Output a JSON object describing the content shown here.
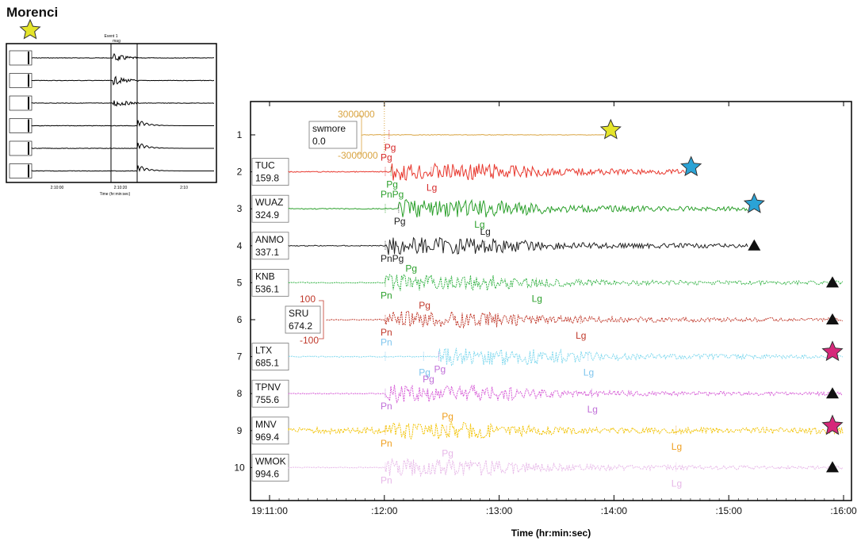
{
  "title": "Morenci",
  "thumbnail": {
    "header": [
      "Event 1",
      "mag"
    ],
    "xticks": [
      "2:10:00",
      "2:10:20",
      "2:10"
    ],
    "xlabel": "Time (hr:min:sec)",
    "rows": 6
  },
  "chart_data": {
    "type": "line",
    "xlabel": "Time (hr:min:sec)",
    "xticks": [
      "19:11:00",
      ":12:00",
      ":13:00",
      ":14:00",
      ":15:00",
      ":16:00"
    ],
    "xlim": [
      "19:11:00",
      "19:16:00"
    ],
    "traces": [
      {
        "index": "1",
        "station": "swmore",
        "distance": "0.0",
        "color": "#d9a441",
        "scale_top": "3000000",
        "scale_bottom": "-3000000",
        "end": "19:13:55",
        "marker": "star",
        "marker_color": "#e4e42a",
        "picks": [
          {
            "label": "Pg",
            "time": "19:12:00",
            "color": "#d62728"
          }
        ]
      },
      {
        "index": "2",
        "station": "TUC",
        "distance": "159.8",
        "color": "#e8382e",
        "end": "19:14:37",
        "marker": "star",
        "marker_color": "#2aa3d6",
        "picks": [
          {
            "label": "Pg",
            "time": "19:12:01",
            "color": "#2ca02c"
          },
          {
            "label": "Pg",
            "time": "19:11:58",
            "color": "#d62728"
          },
          {
            "label": "Lg",
            "time": "19:12:22",
            "color": "#d62728"
          }
        ]
      },
      {
        "index": "3",
        "station": "WUAZ",
        "distance": "324.9",
        "color": "#2ca02c",
        "end": "19:15:10",
        "marker": "star",
        "marker_color": "#2aa3d6",
        "picks": [
          {
            "label": "Pg",
            "time": "19:12:05",
            "color": "#222222"
          },
          {
            "label": "PnPg",
            "time": "19:11:58",
            "color": "#2ca02c"
          },
          {
            "label": "Lg",
            "time": "19:12:47",
            "color": "#2ca02c"
          }
        ]
      },
      {
        "index": "4",
        "station": "ANMO",
        "distance": "337.1",
        "color": "#222222",
        "end": "19:15:10",
        "marker": "triangle",
        "marker_color": "#111111",
        "picks": [
          {
            "label": "PnPg",
            "time": "19:11:58",
            "color": "#222222"
          },
          {
            "label": "Lg",
            "time": "19:12:50",
            "color": "#222222"
          }
        ]
      },
      {
        "index": "5",
        "station": "KNB",
        "distance": "536.1",
        "color": "#39b54a",
        "end": "19:16:00",
        "marker": "triangle",
        "marker_color": "#111111",
        "picks": [
          {
            "label": "Pn",
            "time": "19:11:58",
            "color": "#2ca02c"
          },
          {
            "label": "Pg",
            "time": "19:12:11",
            "color": "#2ca02c"
          },
          {
            "label": "Lg",
            "time": "19:13:17",
            "color": "#2ca02c"
          }
        ]
      },
      {
        "index": "6",
        "station": "SRU",
        "distance": "674.2",
        "color": "#c0392b",
        "scale_top": "100",
        "scale_bottom": "-100",
        "end": "19:16:00",
        "marker": "triangle",
        "marker_color": "#111111",
        "picks": [
          {
            "label": "Pn",
            "time": "19:11:58",
            "color": "#c0392b"
          },
          {
            "label": "Pg",
            "time": "19:12:18",
            "color": "#c0392b"
          },
          {
            "label": "Lg",
            "time": "19:13:40",
            "color": "#c0392b"
          }
        ]
      },
      {
        "index": "7",
        "station": "LTX",
        "distance": "685.1",
        "color": "#7fd8ee",
        "end": "19:16:00",
        "marker": "star",
        "marker_color": "#d6287a",
        "picks": [
          {
            "label": "Pg",
            "time": "19:12:26",
            "color": "#c070d8"
          },
          {
            "label": "Pn",
            "time": "19:11:58",
            "color": "#7fc6ee"
          },
          {
            "label": "Pg",
            "time": "19:12:18",
            "color": "#7fc6ee"
          },
          {
            "label": "Lg",
            "time": "19:13:44",
            "color": "#7fc6ee"
          }
        ]
      },
      {
        "index": "8",
        "station": "TPNV",
        "distance": "755.6",
        "color": "#d65bd6",
        "end": "19:16:00",
        "marker": "triangle",
        "marker_color": "#111111",
        "picks": [
          {
            "label": "Pn",
            "time": "19:11:58",
            "color": "#c070d8"
          },
          {
            "label": "Pg",
            "time": "19:12:20",
            "color": "#c070d8"
          },
          {
            "label": "Lg",
            "time": "19:13:46",
            "color": "#c070d8"
          }
        ]
      },
      {
        "index": "9",
        "station": "MNV",
        "distance": "969.4",
        "color": "#f2c200",
        "end": "19:16:00",
        "marker": "star",
        "marker_color": "#d6287a",
        "picks": [
          {
            "label": "Pn",
            "time": "19:11:58",
            "color": "#f0a020"
          },
          {
            "label": "Pg",
            "time": "19:12:30",
            "color": "#f0a020"
          },
          {
            "label": "Lg",
            "time": "19:14:30",
            "color": "#f0a020"
          }
        ]
      },
      {
        "index": "10",
        "station": "WMOK",
        "distance": "994.6",
        "color": "#e7b8e8",
        "end": "19:16:00",
        "marker": "triangle",
        "marker_color": "#111111",
        "picks": [
          {
            "label": "Pn",
            "time": "19:11:58",
            "color": "#e7b8e8"
          },
          {
            "label": "Pg",
            "time": "19:12:30",
            "color": "#e7b8e8"
          },
          {
            "label": "Lg",
            "time": "19:14:30",
            "color": "#e7b8e8"
          }
        ]
      }
    ]
  }
}
